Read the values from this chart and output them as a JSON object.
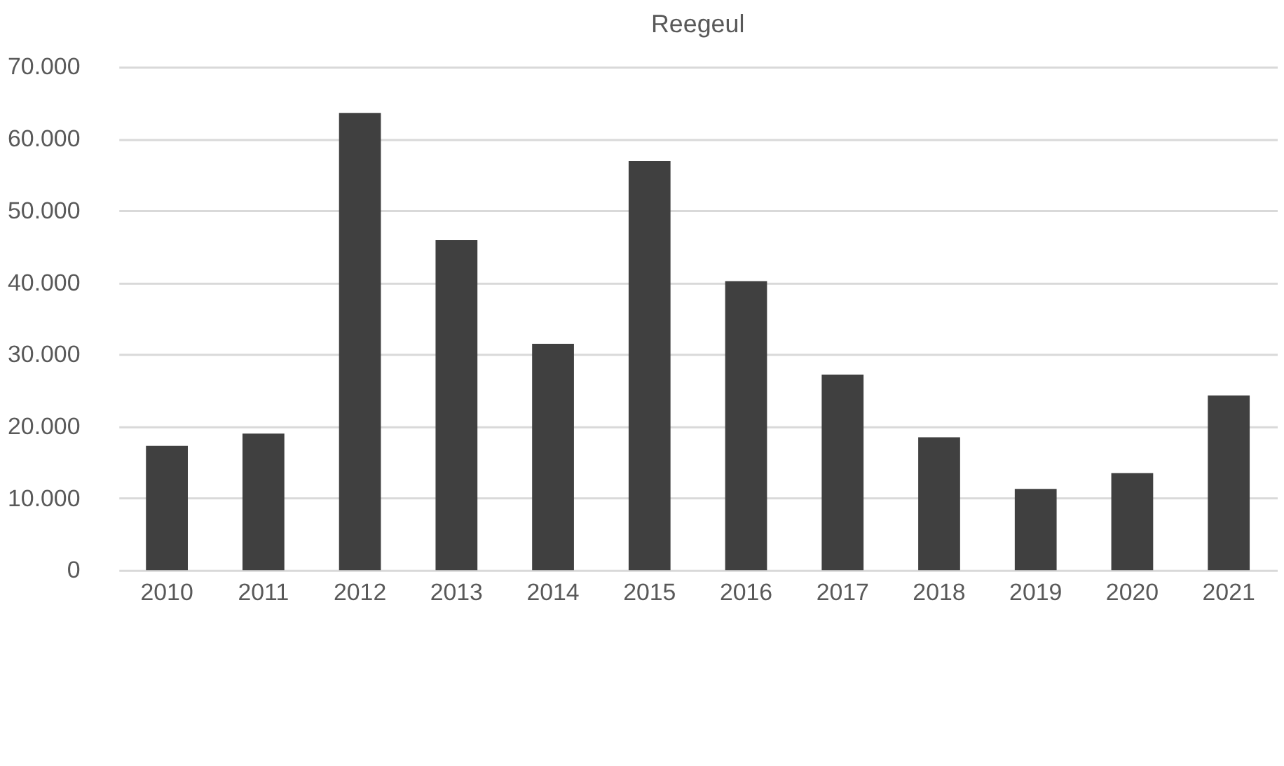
{
  "chart_data": {
    "type": "bar",
    "title": "Reegeul",
    "categories": [
      "2010",
      "2011",
      "2012",
      "2013",
      "2014",
      "2015",
      "2016",
      "2017",
      "2018",
      "2019",
      "2020",
      "2021"
    ],
    "values": [
      17300,
      19000,
      63600,
      45900,
      31500,
      56900,
      40200,
      27200,
      18500,
      11300,
      13500,
      24300
    ],
    "color": "#404040",
    "ylim": [
      0,
      70000
    ],
    "yticks": [
      0,
      {
        "value": 10000,
        "label": "10.000"
      },
      {
        "value": 20000,
        "label": "20.000"
      },
      {
        "value": 30000,
        "label": "30.000"
      },
      {
        "value": 40000,
        "label": "40.000"
      },
      {
        "value": 50000,
        "label": "50.000"
      },
      {
        "value": 60000,
        "label": "60.000"
      },
      {
        "value": 70000,
        "label": "70.000"
      }
    ],
    "grid": "y",
    "legend": false
  }
}
